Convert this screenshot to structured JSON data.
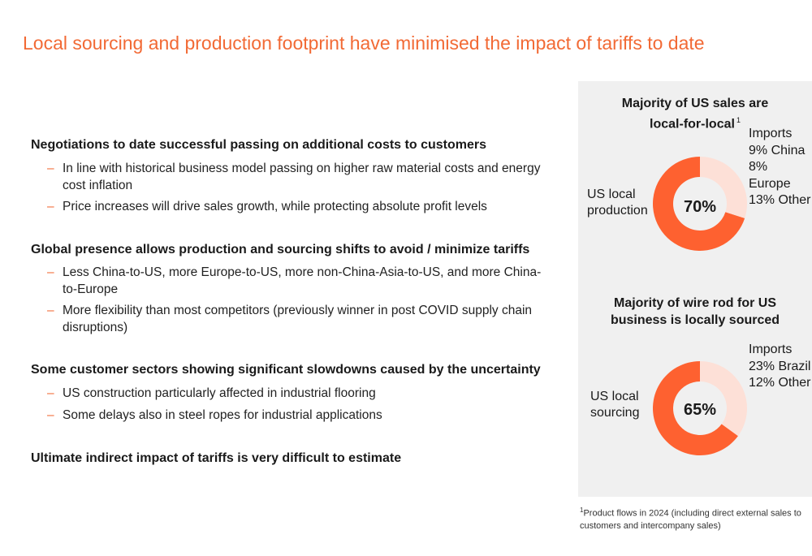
{
  "title": "Local sourcing and production footprint have minimised the impact of tariffs to date",
  "sections": [
    {
      "heading": "Negotiations to date successful passing on additional costs to customers",
      "bullets": [
        "In line with historical business model passing on higher raw material costs and energy cost inflation",
        "Price increases will drive sales growth, while protecting absolute profit levels"
      ]
    },
    {
      "heading": "Global presence allows production and sourcing shifts to avoid / minimize tariffs",
      "bullets": [
        "Less China-to-US, more Europe-to-US, more non-China-Asia-to-US, and more China-to-Europe",
        "More flexibility than most competitors (previously winner in post COVID supply chain disruptions)"
      ]
    },
    {
      "heading": "Some customer sectors showing significant slowdowns caused by the uncertainty",
      "bullets": [
        "US construction particularly affected in industrial flooring",
        "Some delays also in steel ropes for industrial applications"
      ]
    },
    {
      "heading": "Ultimate indirect impact of tariffs is very difficult to estimate",
      "bullets": []
    }
  ],
  "colors": {
    "accent": "#f26a35",
    "primary_slice": "#fe6130",
    "secondary_slice": "#fde0d7",
    "panel_bg": "#f0f0f0"
  },
  "chart_data": [
    {
      "type": "pie",
      "title_line1": "Majority of US sales are",
      "title_line2": "local-for-local",
      "footnote_marker": "1",
      "center_label": "70%",
      "primary_label_line1": "US local",
      "primary_label_line2": "production",
      "imports_lines": [
        "Imports",
        "9% China",
        "8% Europe",
        "13% Other"
      ],
      "slices": [
        {
          "label": "US local production",
          "value": 70
        },
        {
          "label": "Imports",
          "value": 30
        }
      ]
    },
    {
      "type": "pie",
      "title_line1": "Majority of wire rod for US",
      "title_line2": "business is locally sourced",
      "center_label": "65%",
      "primary_label_line1": "US local",
      "primary_label_line2": "sourcing",
      "imports_lines": [
        "Imports",
        "23% Brazil",
        "12% Other"
      ],
      "slices": [
        {
          "label": "US local sourcing",
          "value": 65
        },
        {
          "label": "Imports",
          "value": 35
        }
      ]
    }
  ],
  "footnote": {
    "marker": "1",
    "text": "Product flows in 2024 (including direct external sales to customers and intercompany sales)"
  }
}
